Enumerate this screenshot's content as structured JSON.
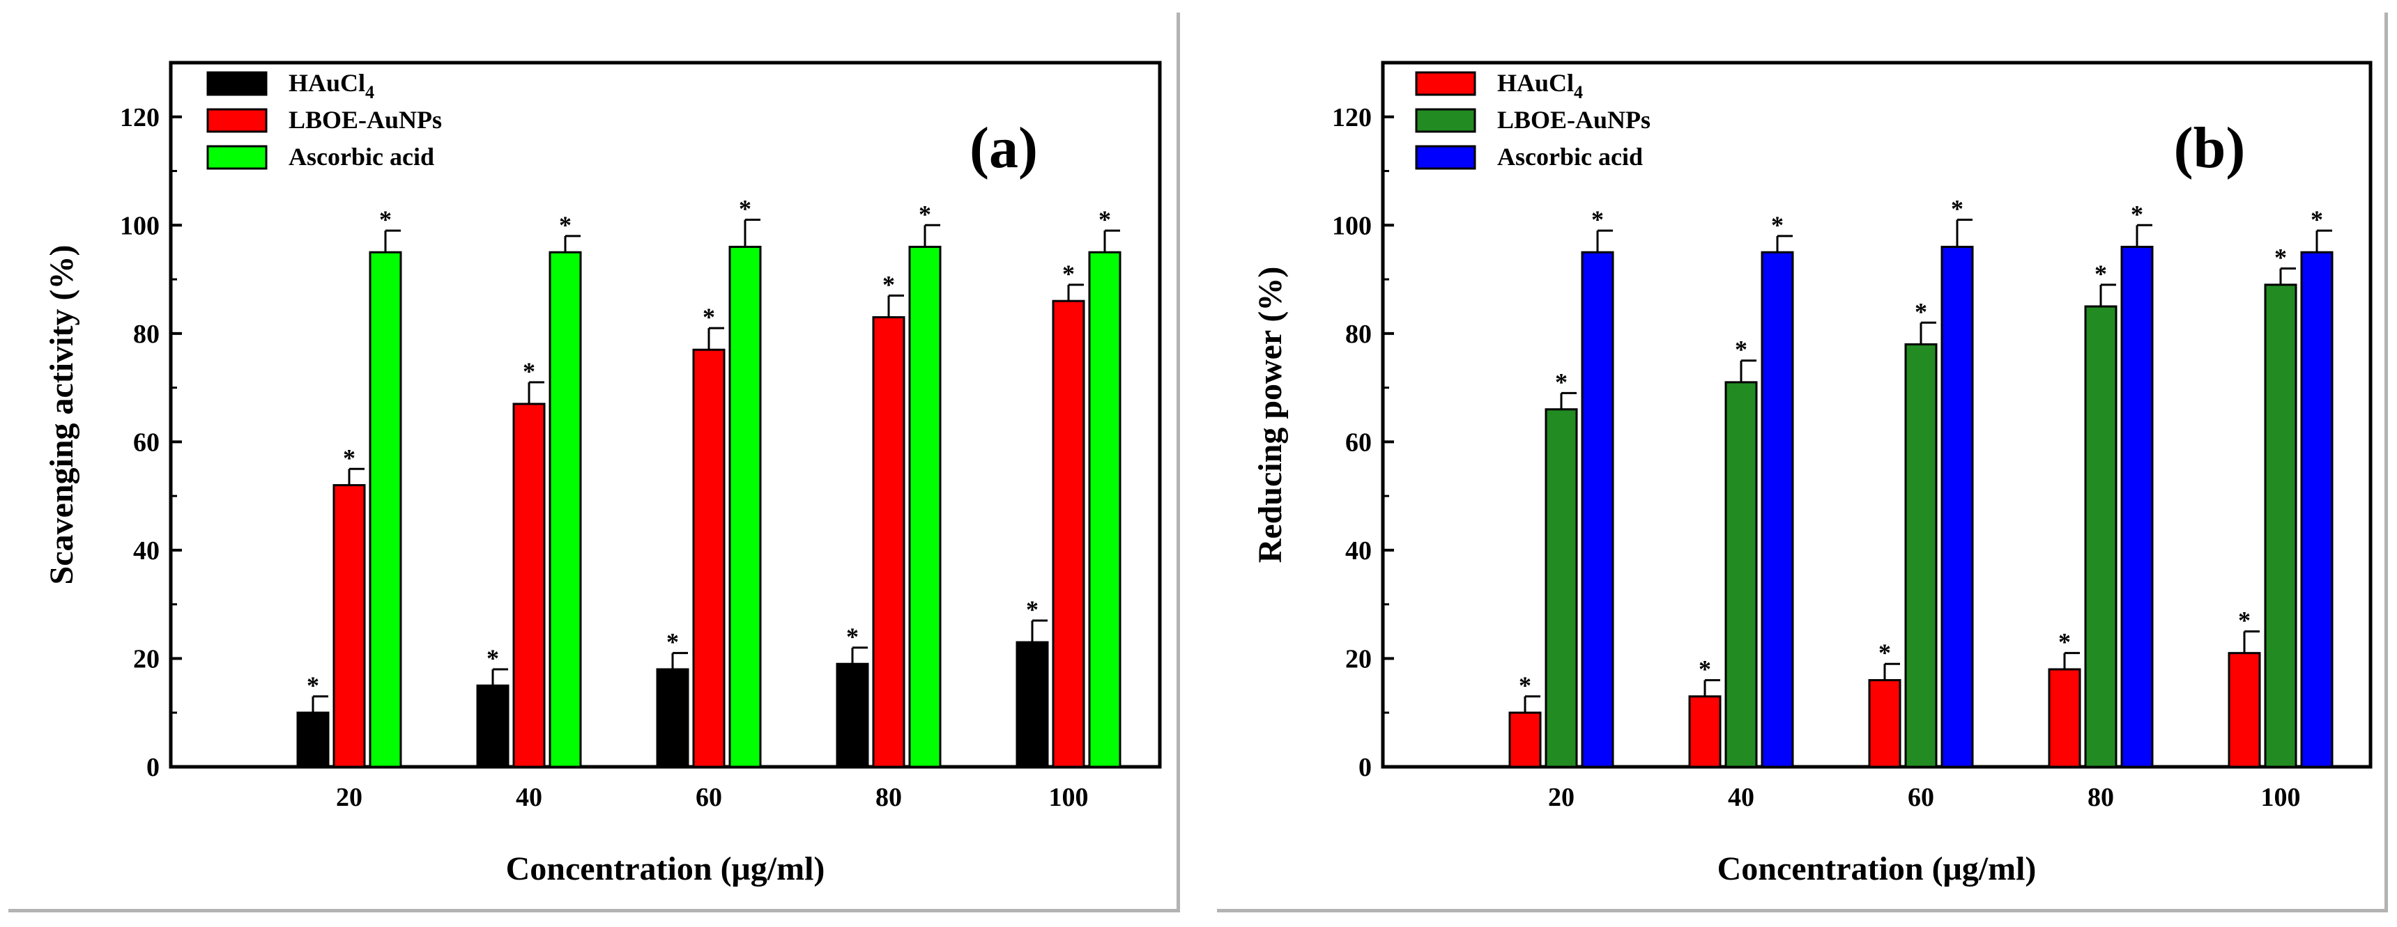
{
  "chart_data": [
    {
      "type": "bar",
      "panel_label": "(a)",
      "categories": [
        "20",
        "40",
        "60",
        "80",
        "100"
      ],
      "xlabel": "Concentration (μg/ml)",
      "ylabel": "Scavenging activity (%)",
      "ylim": [
        0,
        130
      ],
      "yticks": [
        0,
        20,
        40,
        60,
        80,
        100,
        120
      ],
      "ytick_labels": [
        "0",
        "20",
        "40",
        "60",
        "80",
        "100",
        "120"
      ],
      "legend_position": "top-left",
      "series": [
        {
          "name": "HAuCl",
          "subscript": "4",
          "color": "#000000",
          "values": [
            10,
            15,
            18,
            19,
            23
          ],
          "errors": [
            3,
            3,
            3,
            3,
            4
          ],
          "markers": [
            "*",
            "*",
            "*",
            "*",
            "*"
          ]
        },
        {
          "name": "LBOE-AuNPs",
          "subscript": "",
          "color": "#ff0000",
          "values": [
            52,
            67,
            77,
            83,
            86
          ],
          "errors": [
            3,
            4,
            4,
            4,
            3
          ],
          "markers": [
            "*",
            "*",
            "*",
            "*",
            "*"
          ]
        },
        {
          "name": "Ascorbic acid",
          "subscript": "",
          "color": "#00ff00",
          "values": [
            95,
            95,
            96,
            96,
            95
          ],
          "errors": [
            4,
            3,
            5,
            4,
            4
          ],
          "markers": [
            "*",
            "*",
            "*",
            "*",
            "*"
          ]
        }
      ]
    },
    {
      "type": "bar",
      "panel_label": "(b)",
      "categories": [
        "20",
        "40",
        "60",
        "80",
        "100"
      ],
      "xlabel": "Concentration (μg/ml)",
      "ylabel": "Reducing power (%)",
      "ylim": [
        0,
        130
      ],
      "yticks": [
        0,
        20,
        40,
        60,
        80,
        100,
        120
      ],
      "ytick_labels": [
        "0",
        "20",
        "40",
        "60",
        "80",
        "100",
        "120"
      ],
      "legend_position": "top-left",
      "series": [
        {
          "name": "HAuCl",
          "subscript": "4",
          "color": "#ff0000",
          "values": [
            10,
            13,
            16,
            18,
            21
          ],
          "errors": [
            3,
            3,
            3,
            3,
            4
          ],
          "markers": [
            "*",
            "*",
            "*",
            "*",
            "*"
          ]
        },
        {
          "name": "LBOE-AuNPs",
          "subscript": "",
          "color": "#228b22",
          "values": [
            66,
            71,
            78,
            85,
            89
          ],
          "errors": [
            3,
            4,
            4,
            4,
            3
          ],
          "markers": [
            "*",
            "*",
            "*",
            "*",
            "*"
          ]
        },
        {
          "name": "Ascorbic acid",
          "subscript": "",
          "color": "#0000ff",
          "values": [
            95,
            95,
            96,
            96,
            95
          ],
          "errors": [
            4,
            3,
            5,
            4,
            4
          ],
          "markers": [
            "*",
            "*",
            "*",
            "*",
            "*"
          ]
        }
      ]
    }
  ]
}
